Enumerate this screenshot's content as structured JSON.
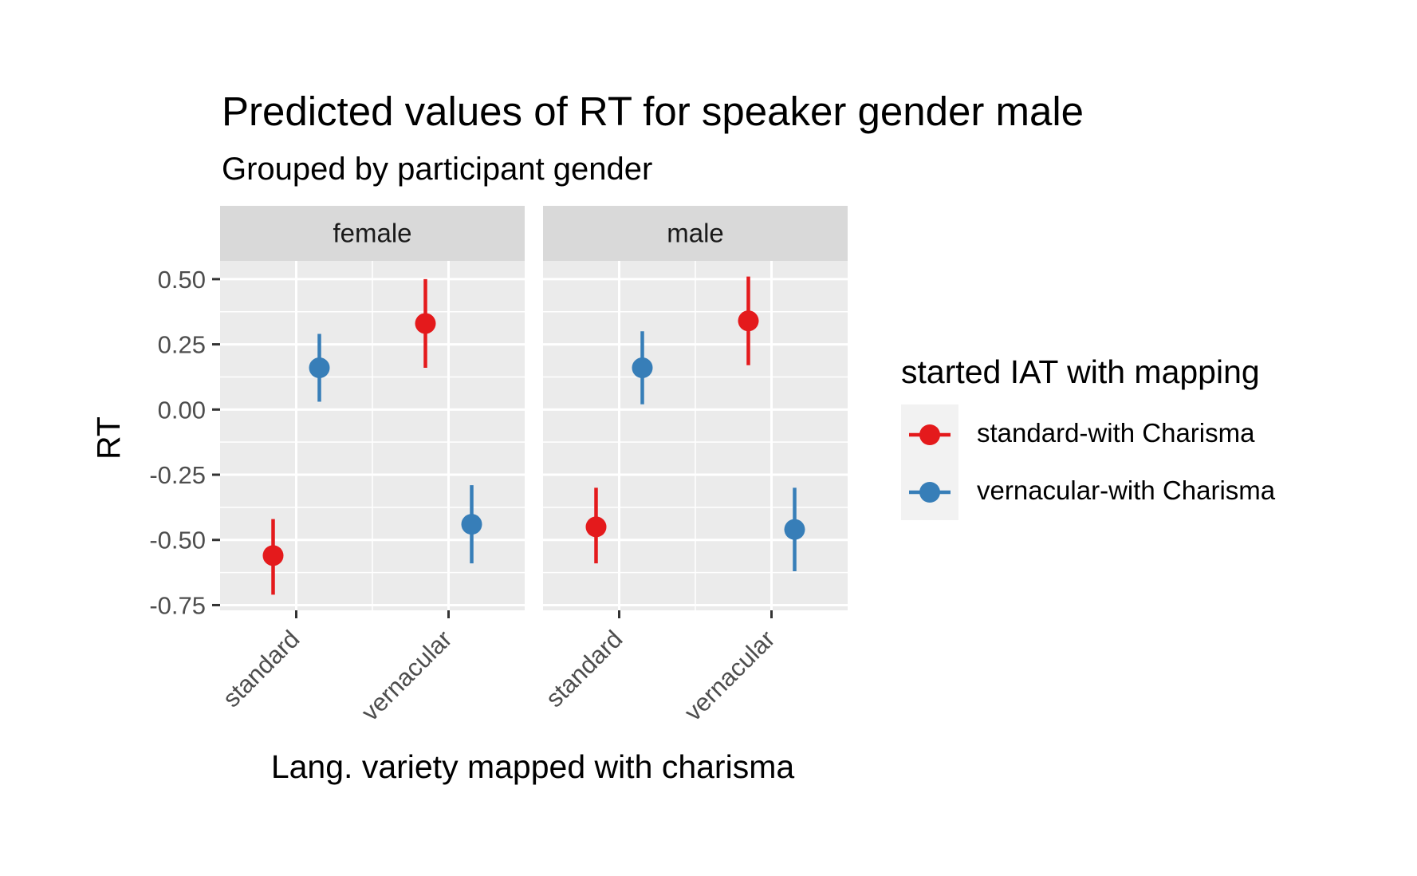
{
  "chart_data": {
    "type": "scatter",
    "title": "Predicted values of RT for speaker gender male",
    "subtitle": "Grouped by participant gender",
    "xlabel": "Lang. variety mapped with charisma",
    "ylabel": "RT",
    "ylim": [
      -0.77,
      0.57
    ],
    "yticks": [
      0.5,
      0.25,
      0.0,
      -0.25,
      -0.5,
      -0.75
    ],
    "ytick_labels": [
      "0.50",
      "0.25",
      "0.00",
      "-0.25",
      "-0.50",
      "-0.75"
    ],
    "categories": [
      "standard",
      "vernacular"
    ],
    "grid": true,
    "panels": [
      {
        "label": "female"
      },
      {
        "label": "male"
      }
    ],
    "legend": {
      "title": "started IAT with mapping",
      "placement": "right"
    },
    "series": [
      {
        "name": "standard-with Charisma",
        "color": "#E41A1C",
        "points": [
          {
            "panel": "female",
            "x": "standard",
            "y": -0.56,
            "low": -0.71,
            "high": -0.42
          },
          {
            "panel": "female",
            "x": "vernacular",
            "y": 0.33,
            "low": 0.16,
            "high": 0.5
          },
          {
            "panel": "male",
            "x": "standard",
            "y": -0.45,
            "low": -0.59,
            "high": -0.3
          },
          {
            "panel": "male",
            "x": "vernacular",
            "y": 0.34,
            "low": 0.17,
            "high": 0.51
          }
        ]
      },
      {
        "name": "vernacular-with Charisma",
        "color": "#377EB8",
        "points": [
          {
            "panel": "female",
            "x": "standard",
            "y": 0.16,
            "low": 0.03,
            "high": 0.29
          },
          {
            "panel": "female",
            "x": "vernacular",
            "y": -0.44,
            "low": -0.59,
            "high": -0.29
          },
          {
            "panel": "male",
            "x": "standard",
            "y": 0.16,
            "low": 0.02,
            "high": 0.3
          },
          {
            "panel": "male",
            "x": "vernacular",
            "y": -0.46,
            "low": -0.62,
            "high": -0.3
          }
        ]
      }
    ]
  }
}
